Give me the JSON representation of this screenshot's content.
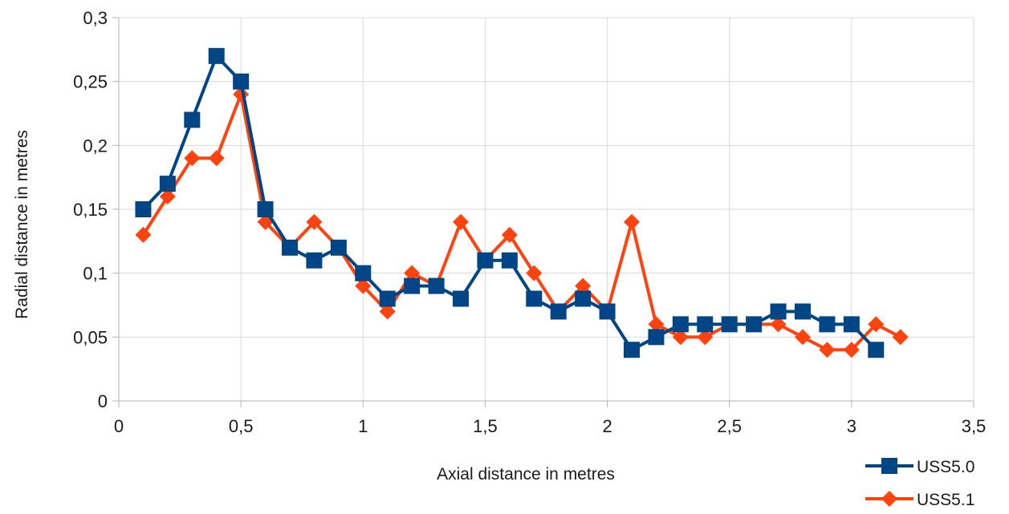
{
  "chart_data": {
    "type": "line",
    "title": "",
    "xlabel": "Axial distance in metres",
    "ylabel": "Radial distance in metres",
    "xlim": [
      0,
      3.5
    ],
    "ylim": [
      0,
      0.3
    ],
    "x_ticks": [
      {
        "value": 0,
        "label": "0"
      },
      {
        "value": 0.5,
        "label": "0,5"
      },
      {
        "value": 1,
        "label": "1"
      },
      {
        "value": 1.5,
        "label": "1,5"
      },
      {
        "value": 2,
        "label": "2"
      },
      {
        "value": 2.5,
        "label": "2,5"
      },
      {
        "value": 3,
        "label": "3"
      },
      {
        "value": 3.5,
        "label": "3,5"
      }
    ],
    "y_ticks": [
      {
        "value": 0,
        "label": "0"
      },
      {
        "value": 0.05,
        "label": "0,05"
      },
      {
        "value": 0.1,
        "label": "0,1"
      },
      {
        "value": 0.15,
        "label": "0,15"
      },
      {
        "value": 0.2,
        "label": "0,2"
      },
      {
        "value": 0.25,
        "label": "0,25"
      },
      {
        "value": 0.3,
        "label": "0,3"
      }
    ],
    "grid": true,
    "legend_position": "bottom-right",
    "series": [
      {
        "name": "USS5.0",
        "color": "#004586",
        "marker": "square",
        "x": [
          0.1,
          0.2,
          0.3,
          0.4,
          0.5,
          0.6,
          0.7,
          0.8,
          0.9,
          1.0,
          1.1,
          1.2,
          1.3,
          1.4,
          1.5,
          1.6,
          1.7,
          1.8,
          1.9,
          2.0,
          2.1,
          2.2,
          2.3,
          2.4,
          2.5,
          2.6,
          2.7,
          2.8,
          2.9,
          3.0,
          3.1
        ],
        "values": [
          0.15,
          0.17,
          0.22,
          0.27,
          0.25,
          0.15,
          0.12,
          0.11,
          0.12,
          0.1,
          0.08,
          0.09,
          0.09,
          0.08,
          0.11,
          0.11,
          0.08,
          0.07,
          0.08,
          0.07,
          0.04,
          0.05,
          0.06,
          0.06,
          0.06,
          0.06,
          0.07,
          0.07,
          0.06,
          0.06,
          0.04
        ]
      },
      {
        "name": "USS5.1",
        "color": "#ff420e",
        "marker": "diamond",
        "x": [
          0.1,
          0.2,
          0.3,
          0.4,
          0.5,
          0.6,
          0.7,
          0.8,
          0.9,
          1.0,
          1.1,
          1.2,
          1.3,
          1.4,
          1.5,
          1.6,
          1.7,
          1.8,
          1.9,
          2.0,
          2.1,
          2.2,
          2.3,
          2.4,
          2.5,
          2.6,
          2.7,
          2.8,
          2.9,
          3.0,
          3.1,
          3.2
        ],
        "values": [
          0.13,
          0.16,
          0.19,
          0.19,
          0.24,
          0.14,
          0.12,
          0.14,
          0.12,
          0.09,
          0.07,
          0.1,
          0.09,
          0.14,
          0.11,
          0.13,
          0.1,
          0.07,
          0.09,
          0.07,
          0.14,
          0.06,
          0.05,
          0.05,
          0.06,
          0.06,
          0.06,
          0.05,
          0.04,
          0.04,
          0.06,
          0.05
        ]
      }
    ]
  }
}
